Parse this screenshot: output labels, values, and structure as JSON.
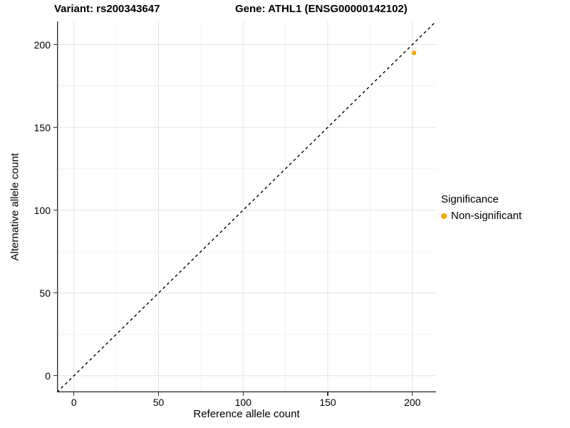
{
  "header": {
    "variant_title": "Variant: rs200343647",
    "gene_title": "Gene: ATHL1 (ENSG00000142102)"
  },
  "chart_data": {
    "type": "scatter",
    "title": "Variant: rs200343647 — Gene: ATHL1 (ENSG00000142102)",
    "xlabel": "Reference allele count",
    "ylabel": "Alternative allele count",
    "xlim": [
      -10,
      214
    ],
    "ylim": [
      -10,
      214
    ],
    "x_ticks": [
      0,
      50,
      100,
      150,
      200
    ],
    "y_ticks": [
      0,
      50,
      100,
      150,
      200
    ],
    "x_minor_ticks": [
      25,
      75,
      125,
      175
    ],
    "y_minor_ticks": [
      25,
      75,
      125,
      175
    ],
    "grid": "major+minor, light gray on white",
    "reference_line": {
      "type": "identity",
      "slope": 1,
      "intercept": 0,
      "style": "dashed",
      "color": "#000000"
    },
    "series": [
      {
        "name": "Non-significant",
        "color": "#FFA500",
        "points": [
          {
            "x": 201,
            "y": 195
          }
        ]
      }
    ],
    "legend": {
      "title": "Significance",
      "position": "right",
      "items": [
        {
          "label": "Non-significant",
          "color": "#FFA500"
        }
      ]
    }
  },
  "style": {
    "grid_major_color": "#E4E4E4",
    "grid_minor_color": "#F2F2F2",
    "axis_color": "#333333",
    "text_color": "#000000",
    "point_radius": 3.2
  }
}
